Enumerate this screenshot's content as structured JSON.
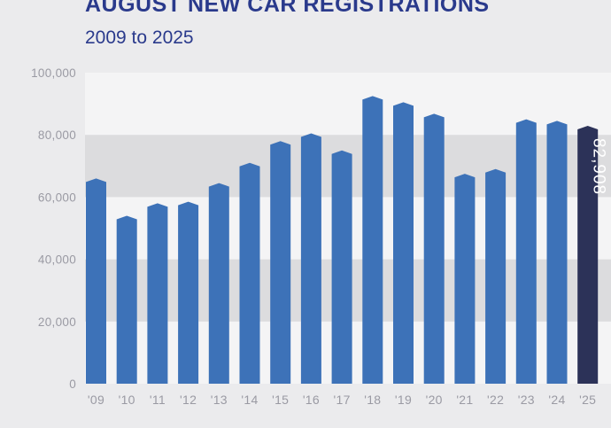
{
  "chart_data": {
    "type": "bar",
    "title": "AUGUST NEW CAR REGISTRATIONS",
    "subtitle": "2009 to 2025",
    "categories": [
      "'09",
      "'10",
      "'11",
      "'12",
      "'13",
      "'14",
      "'15",
      "'16",
      "'17",
      "'18",
      "'19",
      "'20",
      "'21",
      "'22",
      "'23",
      "'24",
      "'25"
    ],
    "values": [
      66000,
      54000,
      58000,
      58500,
      64500,
      71000,
      78000,
      80500,
      75000,
      92500,
      90500,
      86800,
      67500,
      69000,
      85000,
      84500,
      82908
    ],
    "highlight_index": 16,
    "highlight_label": "82,908",
    "ylim": [
      0,
      100000
    ],
    "yticks": [
      0,
      20000,
      40000,
      60000,
      80000,
      100000
    ],
    "ytick_labels": [
      "0",
      "20,000",
      "40,000",
      "60,000",
      "80,000",
      "100,000"
    ],
    "colors": {
      "bar": "#3d72b8",
      "highlight": "#2c3258",
      "band_dark": "#dcdcde",
      "band_light": "#f4f4f5",
      "title": "#2a3a8c"
    }
  }
}
